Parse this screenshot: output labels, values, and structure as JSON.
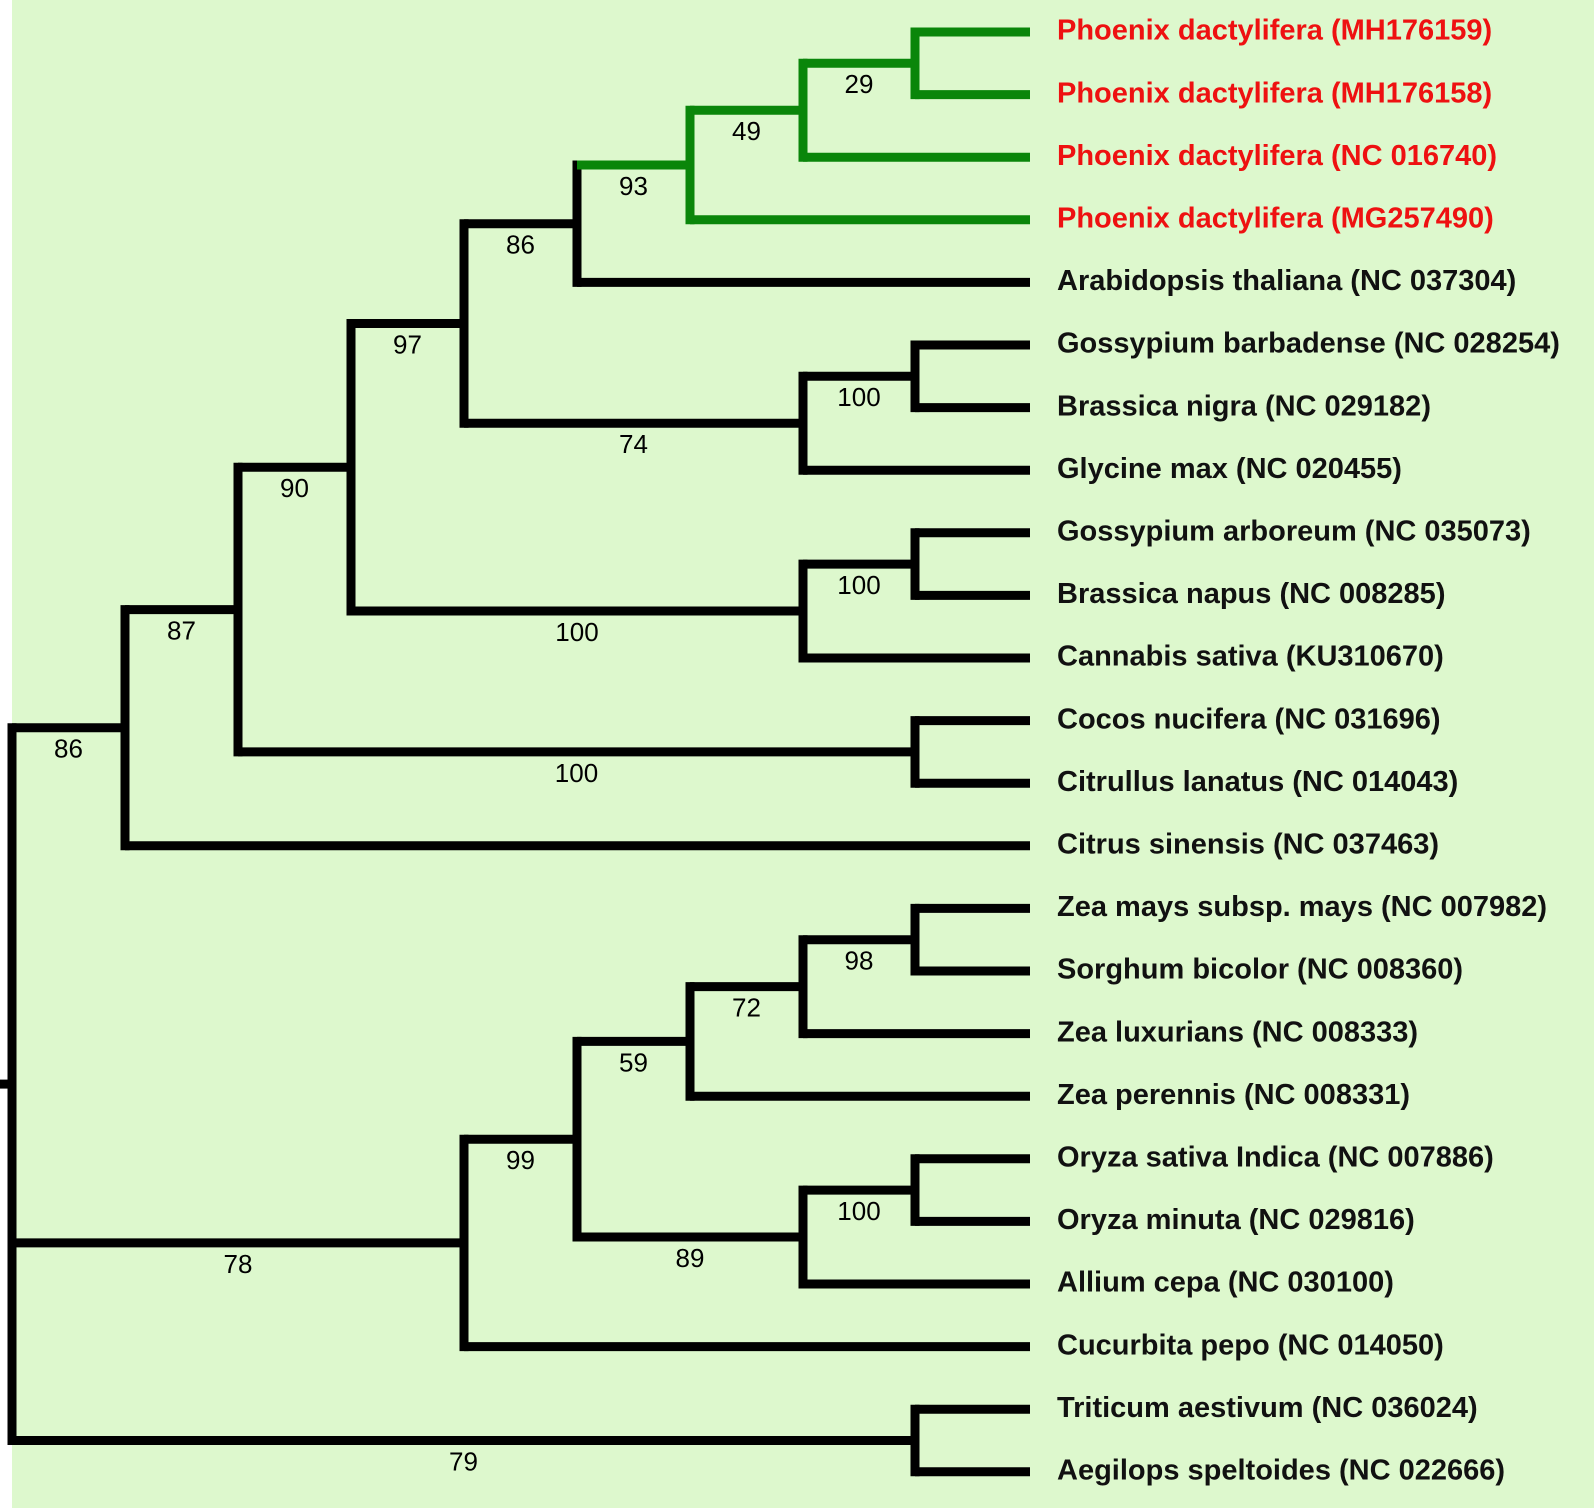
{
  "colors": {
    "background": "#ddf8cd",
    "branch_default": "#000000",
    "branch_highlight": "#0a860a",
    "label_default": "#111111",
    "label_highlight": "#ee1111"
  },
  "tree": {
    "leaves": [
      {
        "label": "Phoenix dactylifera (MH176159)",
        "highlight": true
      },
      {
        "label": "Phoenix dactylifera (MH176158)",
        "highlight": true
      },
      {
        "label": "Phoenix dactylifera (NC 016740)",
        "highlight": true
      },
      {
        "label": "Phoenix dactylifera (MG257490)",
        "highlight": true
      },
      {
        "label": "Arabidopsis thaliana (NC 037304)",
        "highlight": false
      },
      {
        "label": "Gossypium barbadense (NC 028254)",
        "highlight": false
      },
      {
        "label": "Brassica nigra (NC 029182)",
        "highlight": false
      },
      {
        "label": "Glycine max (NC 020455)",
        "highlight": false
      },
      {
        "label": "Gossypium arboreum (NC 035073)",
        "highlight": false
      },
      {
        "label": "Brassica napus (NC 008285)",
        "highlight": false
      },
      {
        "label": "Cannabis sativa (KU310670)",
        "highlight": false
      },
      {
        "label": "Cocos nucifera (NC 031696)",
        "highlight": false
      },
      {
        "label": "Citrullus lanatus (NC 014043)",
        "highlight": false
      },
      {
        "label": "Citrus sinensis (NC 037463)",
        "highlight": false
      },
      {
        "label": "Zea mays subsp. mays (NC 007982)",
        "highlight": false
      },
      {
        "label": "Sorghum bicolor (NC 008360)",
        "highlight": false
      },
      {
        "label": "Zea luxurians (NC 008333)",
        "highlight": false
      },
      {
        "label": "Zea perennis (NC 008331)",
        "highlight": false
      },
      {
        "label": "Oryza sativa Indica (NC 007886)",
        "highlight": false
      },
      {
        "label": "Oryza minuta (NC 029816)",
        "highlight": false
      },
      {
        "label": "Allium cepa (NC 030100)",
        "highlight": false
      },
      {
        "label": "Cucurbita pepo (NC 014050)",
        "highlight": false
      },
      {
        "label": "Triticum aestivum (NC 036024)",
        "highlight": false
      },
      {
        "label": "Aegilops speltoides (NC 022666)",
        "highlight": false
      }
    ],
    "newick": "((((((((0,1)29,2)49,3)93,4)86,((5,6)100,7)74)97,((8,9)100,10)100)90,(11,12)100)87,13)86,((((((14,15)98,16)72,17)59,((18,19)100,20)89)99,21)78,(22,23)79)",
    "support_values": {
      "n29": "29",
      "n49": "49",
      "n93": "93",
      "n86a": "86",
      "n100a": "100",
      "n74": "74",
      "n97": "97",
      "n100b": "100",
      "n100c": "100",
      "n90": "90",
      "n100d": "100",
      "n87": "87",
      "n86b": "86",
      "n98": "98",
      "n72": "72",
      "n59": "59",
      "n100e": "100",
      "n89": "89",
      "n99": "99",
      "n78": "78",
      "n79": "79"
    }
  }
}
